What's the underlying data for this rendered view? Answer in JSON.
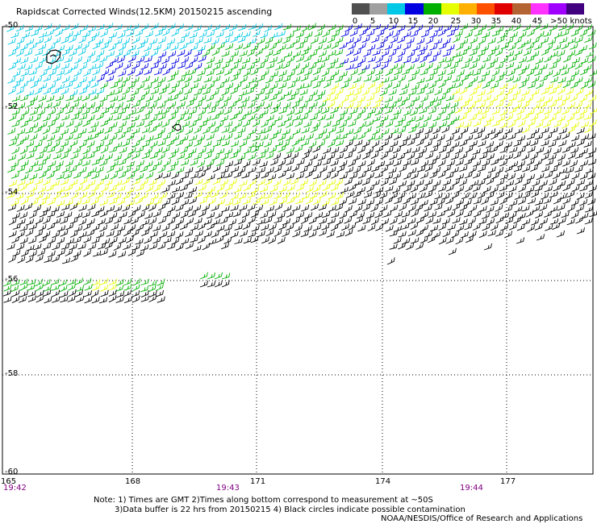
{
  "title": "Rapidscat Corrected Winds(12.5KM) 20150215 ascending",
  "legend": {
    "colors": [
      "#505050",
      "#a0a0a0",
      "#00c8e6",
      "#0000e0",
      "#00b000",
      "#e6ff00",
      "#ffb000",
      "#ff5000",
      "#e00000",
      "#b46432",
      "#ff32ff",
      "#a000ff",
      "#400080"
    ],
    "labels": [
      "0",
      "5",
      "10",
      "15",
      "20",
      "25",
      "30",
      "35",
      "40",
      "45",
      ">50 knots"
    ]
  },
  "axes": {
    "lat_labels": [
      "-50",
      "-52",
      "-54",
      "-56",
      "-58",
      "-60"
    ],
    "lon_labels": [
      "165",
      "168",
      "171",
      "174",
      "177"
    ],
    "time_labels": [
      "19:42",
      "19:43",
      "19:44"
    ]
  },
  "notes": {
    "line1": "Note: 1) Times are GMT 2)Times along bottom correspond to measurement at ~50S",
    "line2": "3)Data buffer is 22 hrs from 20150215 4) Black circles indicate possible contamination",
    "credit": "NOAA/NESDIS/Office of Research and Applications"
  },
  "wind_colors": {
    "calm": "#000000",
    "cyan": "#00c8e6",
    "blue": "#0000e0",
    "green": "#00b000",
    "yellow": "#e6ff00"
  }
}
